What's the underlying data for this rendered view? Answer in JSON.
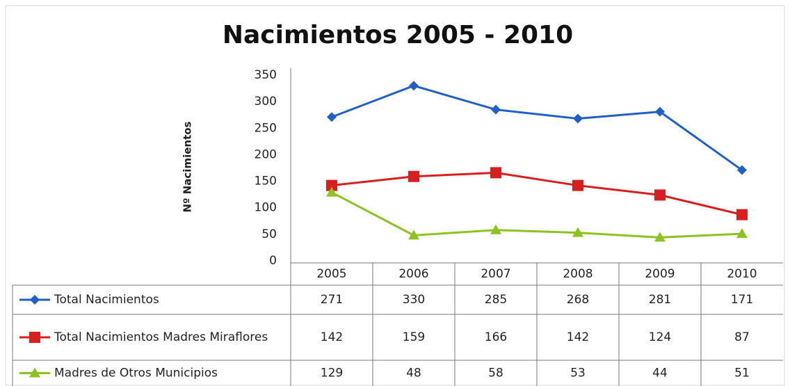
{
  "chart_data": {
    "type": "line",
    "title": "Nacimientos 2005 - 2010",
    "y_label": "Nº Nacimientos",
    "categories": [
      "2005",
      "2006",
      "2007",
      "2008",
      "2009",
      "2010"
    ],
    "series": [
      {
        "name": "Total Nacimientos",
        "color": "#1f5fc8",
        "marker": "diamond",
        "values": [
          271,
          330,
          285,
          268,
          281,
          171
        ]
      },
      {
        "name": "Total Nacimientos Madres Miraflores",
        "color": "#d81e1e",
        "marker": "square",
        "values": [
          142,
          159,
          166,
          142,
          124,
          87
        ]
      },
      {
        "name": "Madres de Otros Municipios",
        "color": "#8dc21f",
        "marker": "triangle",
        "values": [
          129,
          48,
          58,
          53,
          44,
          51
        ]
      }
    ],
    "ylim": [
      0,
      350
    ],
    "yticks": [
      0,
      50,
      100,
      150,
      200,
      250,
      300,
      350
    ],
    "data_table": true
  }
}
